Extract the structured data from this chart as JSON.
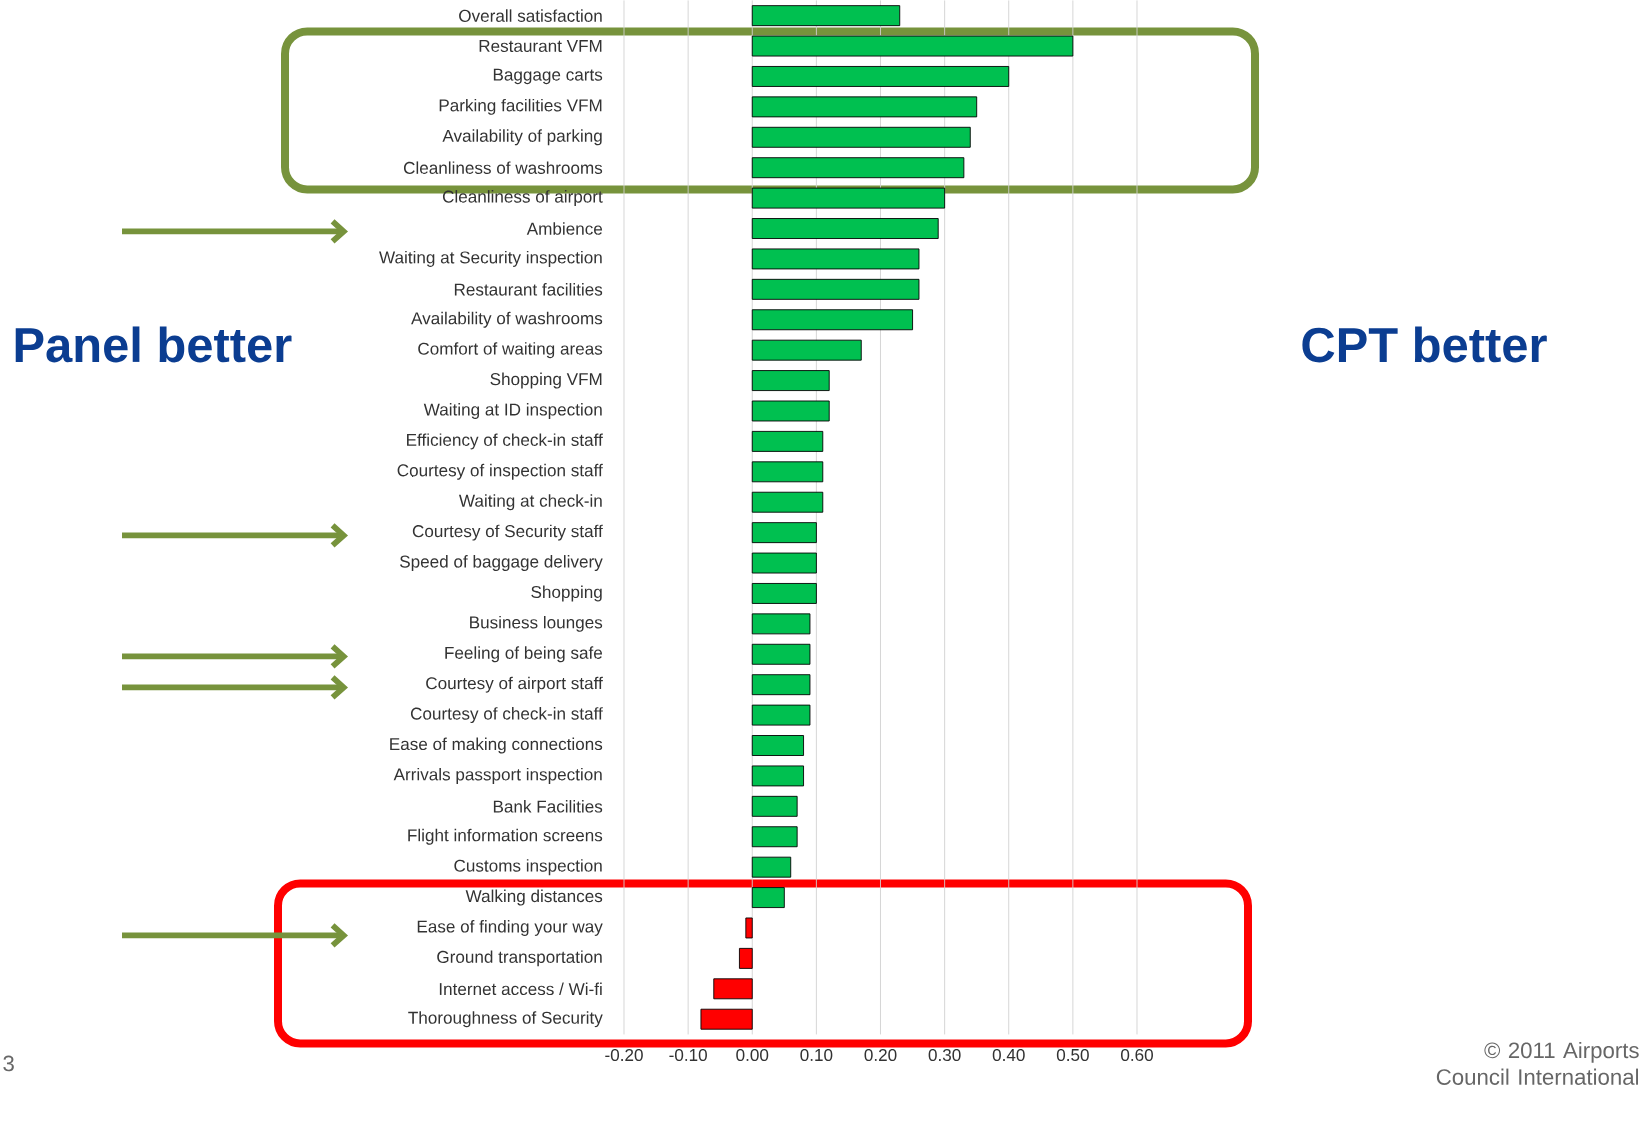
{
  "chart_data": {
    "type": "bar",
    "orientation": "horizontal",
    "categories": [
      "Overall satisfaction",
      "Restaurant VFM",
      "Baggage carts",
      "Parking facilities VFM",
      "Availability of parking",
      "Cleanliness of washrooms",
      "Cleanliness of airport",
      "Ambience",
      "Waiting at Security inspection",
      "Restaurant facilities",
      "Availability of washrooms",
      "Comfort of waiting areas",
      "Shopping VFM",
      "Waiting at ID inspection",
      "Efficiency of check-in staff",
      "Courtesy of inspection staff",
      "Waiting at check-in",
      "Courtesy of Security staff",
      "Speed of baggage delivery",
      "Shopping",
      "Business lounges",
      "Feeling of being safe",
      "Courtesy of airport staff",
      "Courtesy of check-in staff",
      "Ease of making connections",
      "Arrivals passport inspection",
      "Bank Facilities",
      "Flight information screens",
      "Customs inspection",
      "Walking distances",
      "Ease of finding your way",
      "Ground transportation",
      "Internet access / Wi-fi",
      "Thoroughness of Security"
    ],
    "values": [
      0.23,
      0.5,
      0.4,
      0.35,
      0.34,
      0.33,
      0.3,
      0.29,
      0.26,
      0.26,
      0.25,
      0.17,
      0.12,
      0.12,
      0.11,
      0.11,
      0.11,
      0.1,
      0.1,
      0.1,
      0.09,
      0.09,
      0.09,
      0.09,
      0.08,
      0.08,
      0.07,
      0.07,
      0.06,
      0.05,
      -0.01,
      -0.02,
      -0.06,
      -0.08
    ],
    "colors": [
      "#00c050",
      "#00c050",
      "#00c050",
      "#00c050",
      "#00c050",
      "#00c050",
      "#00c050",
      "#00c050",
      "#00c050",
      "#00c050",
      "#00c050",
      "#00c050",
      "#00c050",
      "#00c050",
      "#00c050",
      "#00c050",
      "#00c050",
      "#00c050",
      "#00c050",
      "#00c050",
      "#00c050",
      "#00c050",
      "#00c050",
      "#00c050",
      "#00c050",
      "#00c050",
      "#00c050",
      "#00c050",
      "#00c050",
      "#00c050",
      "#ff0000",
      "#ff0000",
      "#ff0000",
      "#ff0000"
    ],
    "xlim": [
      -0.2,
      0.6
    ],
    "xticks": [
      {
        "value": -0.2,
        "label": "-0.20"
      },
      {
        "value": -0.1,
        "label": "-0.10"
      },
      {
        "value": 0,
        "label": "0.00"
      },
      {
        "value": 0.1,
        "label": "0.10"
      },
      {
        "value": 0.2,
        "label": "0.20"
      },
      {
        "value": 0.3,
        "label": "0.30"
      },
      {
        "value": 0.4,
        "label": "0.40"
      },
      {
        "value": 0.5,
        "label": "0.50"
      },
      {
        "value": 0.6,
        "label": "0.60"
      }
    ],
    "grid": "x",
    "annotations": [
      "Panel better",
      "CPT better",
      "© 2011 Airports Council International",
      "3"
    ]
  }
}
